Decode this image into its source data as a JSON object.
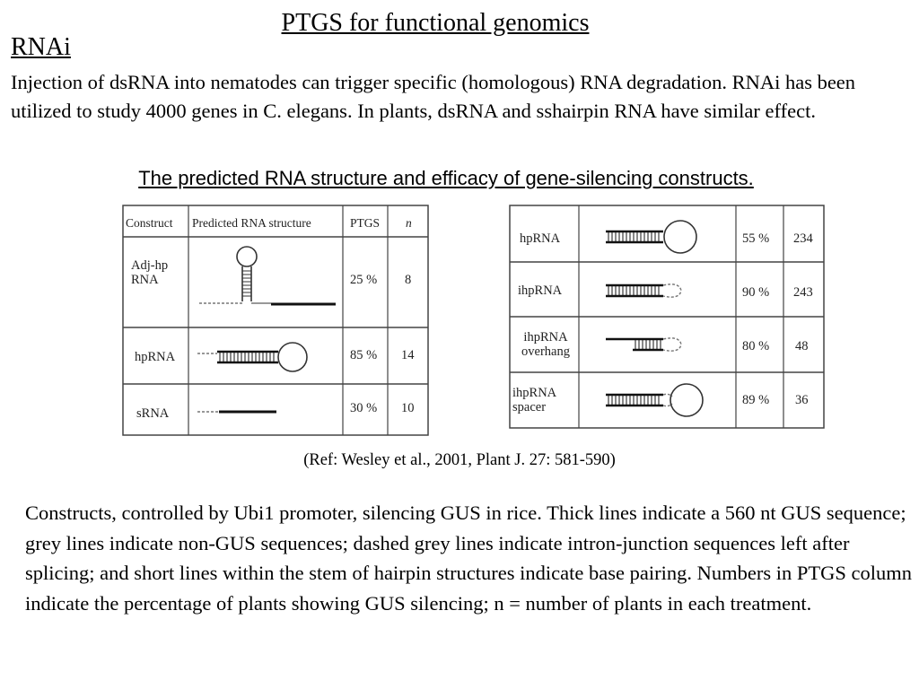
{
  "title": "PTGS for functional genomics",
  "heading": "RNAi",
  "intro": "Injection of dsRNA into nematodes can trigger specific (homologous) RNA degradation.  RNAi has been utilized to study 4000 genes in C. elegans.  In plants, dsRNA and sshairpin RNA have similar effect.",
  "subtitle": "The predicted RNA structure and efficacy of gene-silencing constructs.",
  "table1": {
    "headers": [
      "Construct",
      "Predicted RNA structure",
      "PTGS",
      "n"
    ],
    "rows": [
      {
        "construct": "Adj-hp RNA",
        "ptgs": "25 %",
        "n": "8"
      },
      {
        "construct": "hpRNA",
        "ptgs": "85 %",
        "n": "14"
      },
      {
        "construct": "sRNA",
        "ptgs": "30 %",
        "n": "10"
      }
    ]
  },
  "table2": {
    "rows": [
      {
        "construct": "hpRNA",
        "ptgs": "55 %",
        "n": "234"
      },
      {
        "construct": "ihpRNA",
        "ptgs": "90 %",
        "n": "243"
      },
      {
        "construct": "ihpRNA overhang",
        "ptgs": "80 %",
        "n": "48"
      },
      {
        "construct": "ihpRNA spacer",
        "ptgs": "89 %",
        "n": "36"
      }
    ]
  },
  "reference": "(Ref: Wesley et al., 2001, Plant J. 27: 581-590)",
  "caption": "Constructs, controlled by Ubi1 promoter, silencing GUS in rice. Thick lines indicate a 560 nt GUS sequence; grey lines indicate non-GUS sequences; dashed grey lines indicate intron-junction sequences left after splicing; and short lines within the stem of hairpin structures indicate base pairing. Numbers in PTGS column indicate the percentage of plants showing GUS silencing; n = number of plants in each treatment."
}
